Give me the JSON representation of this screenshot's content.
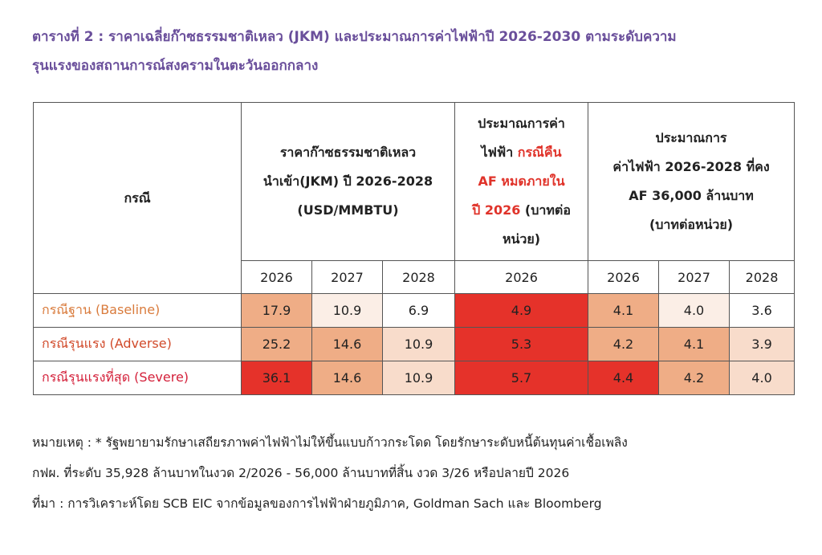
{
  "title": {
    "line1": "ตารางที่ 2 : ราคาเฉลี่ยก๊าซธรรมชาติเหลว (JKM) และประมาณการค่าไฟฟ้าปี 2026-2030 ตามระดับความ",
    "line2": "รุนแรงของสถานการณ์สงครามในตะวันออกกลาง"
  },
  "table": {
    "col_case": "กรณี",
    "col_jkm": [
      "ราคาก๊าซธรรมชาติเหลว",
      "นำเข้า(JKM) ปี 2026-2028",
      "(USD/MMBTU)"
    ],
    "col_af": {
      "l1": "ประมาณการค่า",
      "l2a": "ไฟฟ้า ",
      "l2b": "กรณีคืน",
      "l3": "AF หมดภายใน",
      "l4a": "ปี 2026",
      "l4b": " (บาทต่อ",
      "l5": "หน่วย)"
    },
    "col_fixed": [
      "ประมาณการ",
      "ค่าไฟฟ้า 2026-2028 ที่คง",
      "AF 36,000 ล้านบาท",
      "(บาทต่อหน่วย)"
    ],
    "years": [
      "2026",
      "2027",
      "2028",
      "2026",
      "2026",
      "2027",
      "2028"
    ],
    "rows": [
      {
        "case": "กรณีฐาน (Baseline)",
        "values": [
          "17.9",
          "10.9",
          "6.9",
          "4.9",
          "4.1",
          "4.0",
          "3.6"
        ]
      },
      {
        "case": "กรณีรุนแรง (Adverse)",
        "values": [
          "25.2",
          "14.6",
          "10.9",
          "5.3",
          "4.2",
          "4.1",
          "3.9"
        ]
      },
      {
        "case": "กรณีรุนแรงที่สุด (Severe)",
        "values": [
          "36.1",
          "14.6",
          "10.9",
          "5.7",
          "4.4",
          "4.2",
          "4.0"
        ]
      }
    ]
  },
  "notes": {
    "line1": "หมายเหตุ : * รัฐพยายามรักษาเสถียรภาพค่าไฟฟ้าไม่ให้ขึ้นแบบก้าวกระโดด โดยรักษาระดับหนี้ต้นทุนค่าเชื้อเพลิง",
    "line2": "กฟผ. ที่ระดับ 35,928 ล้านบาทในงวด 2/2026 - 56,000 ล้านบาทที่สิ้น งวด 3/26 หรือปลายปี 2026",
    "line3": "ที่มา : การวิเคราะห์โดย SCB EIC จากข้อมูลของการไฟฟ้าฝ่ายภูมิภาค, Goldman Sach และ Bloomberg"
  }
}
